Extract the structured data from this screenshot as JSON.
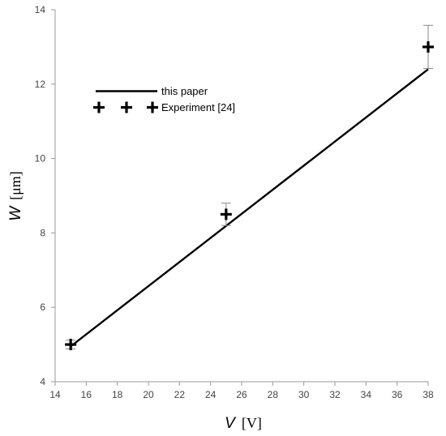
{
  "chart_data": {
    "type": "line",
    "xlim": [
      14,
      38
    ],
    "ylim": [
      4,
      14
    ],
    "x_ticks": [
      14,
      16,
      18,
      20,
      22,
      24,
      26,
      28,
      30,
      32,
      34,
      36,
      38
    ],
    "y_ticks": [
      4,
      6,
      8,
      10,
      12,
      14
    ],
    "xlabel_symbol": "V",
    "xlabel_unit": "[V]",
    "ylabel_symbol": "W",
    "ylabel_unit": "[μm]",
    "grid": false,
    "legend_position": "top-left",
    "series": [
      {
        "name": "this paper",
        "type": "line",
        "x": [
          15,
          38
        ],
        "y": [
          4.95,
          12.4
        ]
      },
      {
        "name": "Experiment [24]",
        "type": "scatter",
        "marker": "plus",
        "x": [
          15,
          25,
          38
        ],
        "y": [
          5.0,
          8.5,
          13.0
        ],
        "error": [
          0.12,
          0.3,
          0.58
        ]
      }
    ],
    "colors": {
      "line": "#000000",
      "marker": "#000000",
      "axis": "#999999",
      "error_bar": "#888888"
    }
  }
}
